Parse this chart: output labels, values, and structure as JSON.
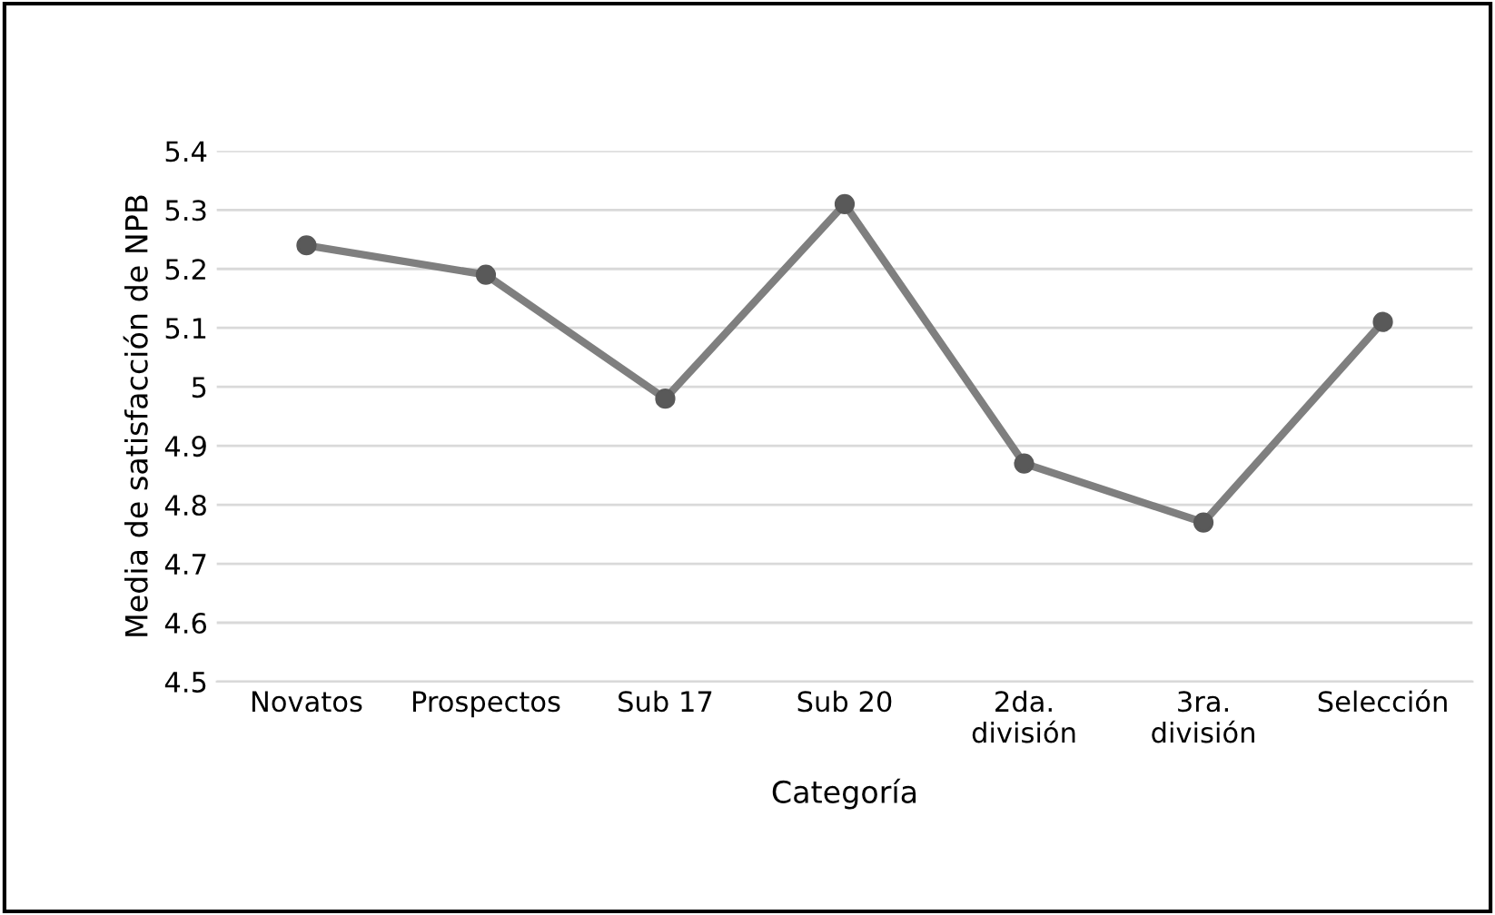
{
  "chart_data": {
    "type": "line",
    "xlabel": "Categoría",
    "ylabel": "Media de satisfacción de NPB",
    "categories": [
      "Novatos",
      "Prospectos",
      "Sub 17",
      "Sub 20",
      "2da.\ndivisión",
      "3ra.\ndivisión",
      "Selección"
    ],
    "series": [
      {
        "color": "#7f7f7f",
        "values": [
          5.24,
          5.19,
          4.98,
          5.31,
          4.87,
          4.77,
          5.11
        ]
      }
    ],
    "ylim": [
      4.5,
      5.4
    ],
    "yticks": [
      4.5,
      4.6,
      4.7,
      4.8,
      4.9,
      5,
      5.1,
      5.2,
      5.3,
      5.4
    ],
    "grid": "y",
    "marker": "circle",
    "line_style": "solid"
  }
}
